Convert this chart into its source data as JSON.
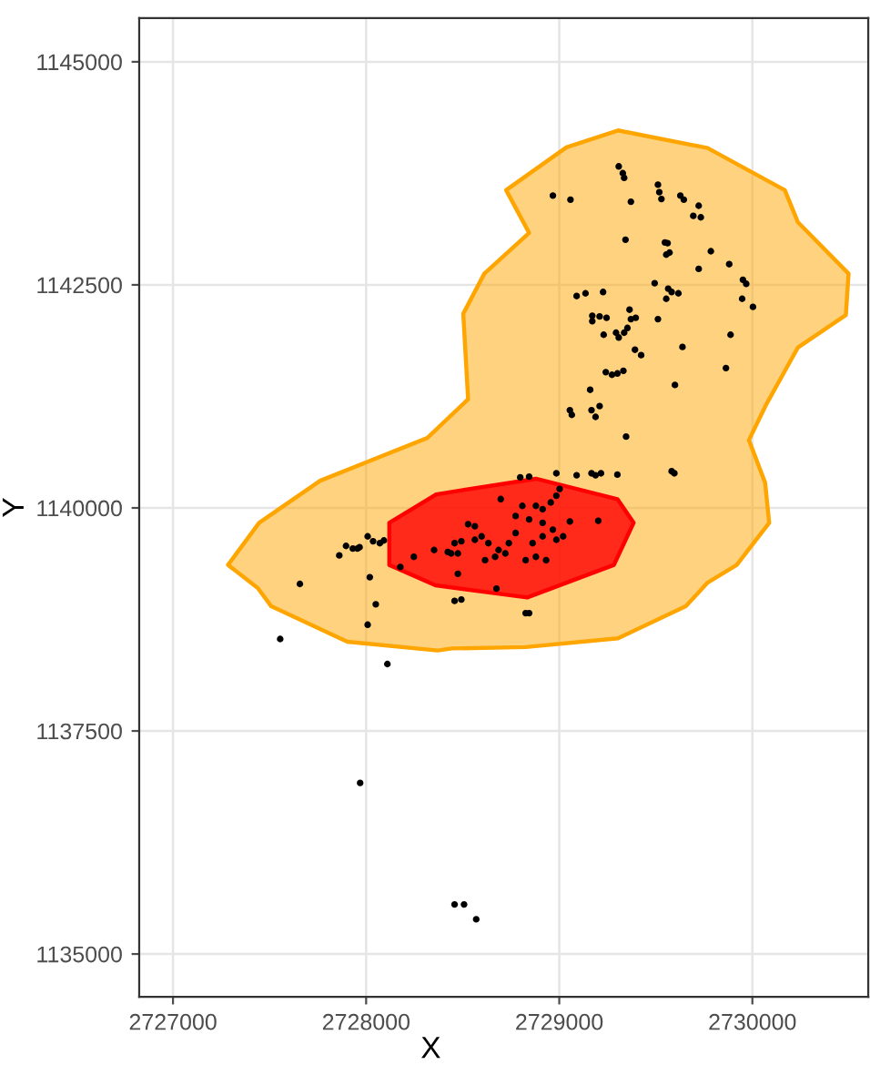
{
  "chart_data": {
    "type": "scatter",
    "xlabel": "X",
    "ylabel": "Y",
    "xlim": [
      2726825,
      2730600
    ],
    "ylim": [
      1134520,
      1145490
    ],
    "xticks": [
      2727000,
      2728000,
      2729000,
      2730000
    ],
    "yticks": [
      1135000,
      1137500,
      1140000,
      1142500,
      1145000
    ],
    "grid": true,
    "series": [
      {
        "type": "area",
        "color": "#ffa500",
        "x": [
          2727285,
          2727446,
          2727762,
          2728317,
          2728528,
          2728503,
          2728612,
          2728844,
          2728725,
          2729037,
          2729304,
          2729768,
          2730168,
          2730235,
          2730498,
          2730484,
          2730235,
          2730073,
          2729982,
          2730066,
          2730087,
          2729919,
          2729768,
          2729655,
          2729304,
          2728826,
          2728444,
          2728370,
          2727903,
          2727509,
          2727439
        ],
        "values": [
          1139361,
          1139833,
          1140305,
          1140784,
          1141218,
          1142177,
          1142626,
          1143082,
          1143562,
          1144041,
          1144231,
          1144034,
          1143562,
          1143204,
          1142626,
          1142161,
          1141796,
          1141165,
          1140761,
          1140282,
          1139833,
          1139361,
          1139163,
          1138897,
          1138539,
          1138440,
          1138425,
          1138402,
          1138501,
          1138897,
          1139102
        ]
      },
      {
        "type": "area",
        "color": "#ff0000",
        "x": [
          2728120,
          2728363,
          2728879,
          2729301,
          2729385,
          2729283,
          2728834,
          2728359,
          2728120
        ],
        "values": [
          1139833,
          1140152,
          1140327,
          1140099,
          1139833,
          1139361,
          1138996,
          1139133,
          1139361
        ]
      },
      {
        "color": "#000000",
        "marker": "circle",
        "x": [
          2729308,
          2729329,
          2729336,
          2728967,
          2729058,
          2729371,
          2729511,
          2729518,
          2729529,
          2729627,
          2729645,
          2729722,
          2729694,
          2729733,
          2729343,
          2729547,
          2729561,
          2729554,
          2729571,
          2729785,
          2729722,
          2729880,
          2729951,
          2729968,
          2729947,
          2730003,
          2729494,
          2729564,
          2729582,
          2729617,
          2729554,
          2729090,
          2729136,
          2729227,
          2729511,
          2729171,
          2729209,
          2729245,
          2729171,
          2729364,
          2729371,
          2729396,
          2729230,
          2729294,
          2729308,
          2729336,
          2729353,
          2729638,
          2729887,
          2729392,
          2729424,
          2729241,
          2729273,
          2729301,
          2729332,
          2729599,
          2729863,
          2729160,
          2729055,
          2729065,
          2729167,
          2729188,
          2729209,
          2729346,
          2729582,
          2729596,
          2728798,
          2728844,
          2728985,
          2729090,
          2729167,
          2729188,
          2729216,
          2729301,
          2729202,
          2728697,
          2728809,
          2728879,
          2728914,
          2728956,
          2728985,
          2729002,
          2728774,
          2728844,
          2728914,
          2728967,
          2729020,
          2729055,
          2728528,
          2728563,
          2728598,
          2728633,
          2728686,
          2728721,
          2728739,
          2728668,
          2728616,
          2728563,
          2728493,
          2728458,
          2728440,
          2728475,
          2728774,
          2728862,
          2728914,
          2728826,
          2728879,
          2728932,
          2728985,
          2728423,
          2728352,
          2728247,
          2728177,
          2728475,
          2728675,
          2728826,
          2728844,
          2728458,
          2728493,
          2727861,
          2727896,
          2727931,
          2727955,
          2727966,
          2728008,
          2728036,
          2728071,
          2728092,
          2727657,
          2727555,
          2728019,
          2728050,
          2728008,
          2728110,
          2727969,
          2728458,
          2728507,
          2728570
        ],
        "values": [
          1143828,
          1143752,
          1143699,
          1143501,
          1143455,
          1143432,
          1143623,
          1143539,
          1143463,
          1143501,
          1143455,
          1143387,
          1143273,
          1143257,
          1143006,
          1142976,
          1142968,
          1142839,
          1142862,
          1142877,
          1142679,
          1142732,
          1142557,
          1142512,
          1142344,
          1142253,
          1142519,
          1142458,
          1142420,
          1142405,
          1142344,
          1142375,
          1142405,
          1142420,
          1142116,
          1142154,
          1142146,
          1142131,
          1142093,
          1142222,
          1142116,
          1142131,
          1141941,
          1141964,
          1141910,
          1141964,
          1142017,
          1141804,
          1141941,
          1141773,
          1141712,
          1141522,
          1141492,
          1141507,
          1141537,
          1141378,
          1141568,
          1141324,
          1141096,
          1141043,
          1141096,
          1141020,
          1141142,
          1140799,
          1140411,
          1140388,
          1140343,
          1140350,
          1140388,
          1140366,
          1140388,
          1140366,
          1140388,
          1140373,
          1139856,
          1140099,
          1140023,
          1140023,
          1139985,
          1140061,
          1140137,
          1140213,
          1139909,
          1139871,
          1139833,
          1139757,
          1139681,
          1139848,
          1139818,
          1139795,
          1139681,
          1139605,
          1139528,
          1139490,
          1139605,
          1139452,
          1139414,
          1139643,
          1139627,
          1139605,
          1139490,
          1139490,
          1139719,
          1139605,
          1139681,
          1139414,
          1139452,
          1139414,
          1139643,
          1139506,
          1139528,
          1139452,
          1139338,
          1139262,
          1139095,
          1138821,
          1138821,
          1138958,
          1138973,
          1139468,
          1139574,
          1139544,
          1139544,
          1139559,
          1139681,
          1139627,
          1139605,
          1139635,
          1139148,
          1138531,
          1139224,
          1138920,
          1138691,
          1138250,
          1136918,
          1135556,
          1135556,
          1135389
        ]
      }
    ]
  }
}
